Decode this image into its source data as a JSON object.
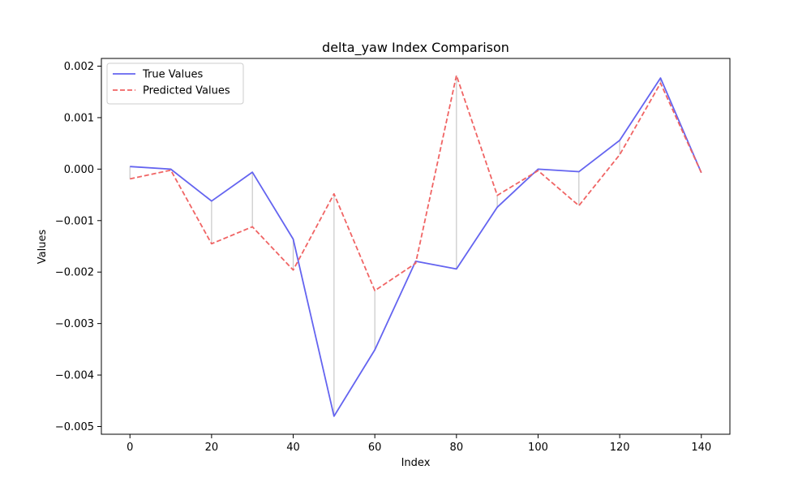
{
  "chart_data": {
    "type": "line",
    "title": "delta_yaw Index Comparison",
    "xlabel": "Index",
    "ylabel": "Values",
    "x": [
      0,
      10,
      20,
      30,
      40,
      50,
      60,
      70,
      80,
      90,
      100,
      110,
      120,
      130,
      140
    ],
    "xlim": [
      -7,
      147
    ],
    "ylim": [
      -0.00515,
      0.00215
    ],
    "xticks": [
      0,
      20,
      40,
      60,
      80,
      100,
      120,
      140
    ],
    "xtick_labels": [
      "0",
      "20",
      "40",
      "60",
      "80",
      "100",
      "120",
      "140"
    ],
    "yticks": [
      0.002,
      0.001,
      0.0,
      -0.001,
      -0.002,
      -0.003,
      -0.004,
      -0.005
    ],
    "ytick_labels": [
      "0.002",
      "0.001",
      "0.000",
      "−0.001",
      "−0.002",
      "−0.003",
      "−0.004",
      "−0.005"
    ],
    "grid": false,
    "legend_position": "top-left",
    "series": [
      {
        "name": "True Values",
        "style": "solid",
        "color": "#6464f0",
        "values": [
          5e-05,
          0.0,
          -0.00062,
          -6e-05,
          -0.00136,
          -0.0048,
          -0.00351,
          -0.00179,
          -0.00194,
          -0.00074,
          0.0,
          -5e-05,
          0.00056,
          0.00177,
          -7e-05
        ]
      },
      {
        "name": "Predicted Values",
        "style": "dashed",
        "color": "#f06464",
        "values": [
          -0.00019,
          -2e-05,
          -0.00145,
          -0.00112,
          -0.00196,
          -0.00048,
          -0.00236,
          -0.00183,
          0.00182,
          -0.00051,
          -3e-05,
          -0.00071,
          0.00028,
          0.00167,
          -7e-05
        ]
      }
    ],
    "error_line_color": "#c8c8c8"
  }
}
